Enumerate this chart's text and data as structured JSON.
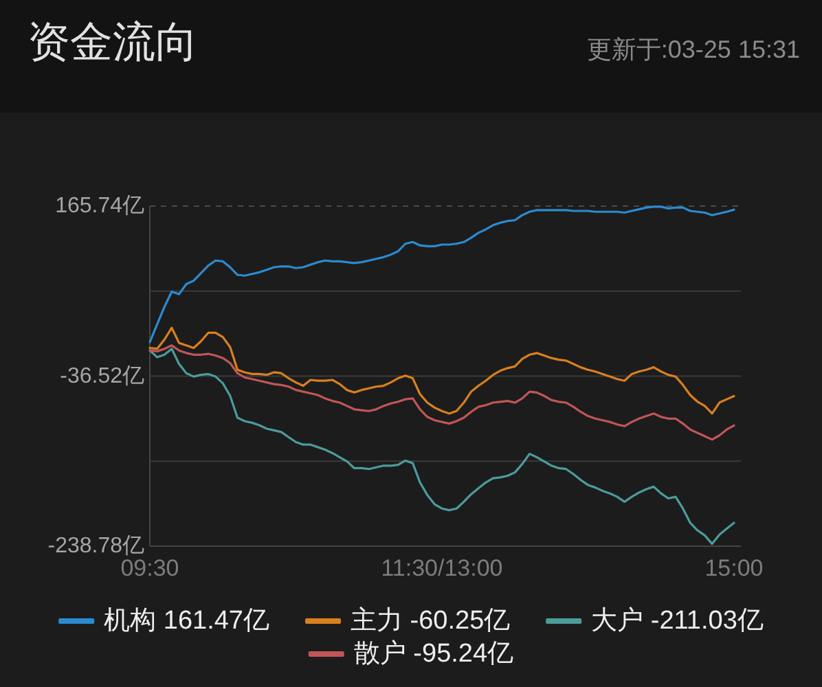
{
  "chart_data": {
    "type": "line",
    "title": "资金流向",
    "annotations": [
      "更新于:03-25 15:31"
    ],
    "categories": [
      "09:30",
      null,
      null,
      null,
      null,
      null,
      null,
      null,
      null,
      null,
      null,
      null,
      null,
      null,
      null,
      null,
      null,
      null,
      null,
      null,
      null,
      null,
      null,
      null,
      null,
      null,
      null,
      null,
      null,
      null,
      null,
      null,
      null,
      null,
      null,
      null,
      null,
      null,
      null,
      null,
      "11:30/13:00",
      null,
      null,
      null,
      null,
      null,
      null,
      null,
      null,
      null,
      null,
      null,
      null,
      null,
      null,
      null,
      null,
      null,
      null,
      null,
      null,
      null,
      null,
      null,
      null,
      null,
      null,
      null,
      null,
      null,
      null,
      null,
      null,
      null,
      null,
      null,
      null,
      null,
      null,
      null,
      "15:00"
    ],
    "ylim": [
      -238.78,
      165.74
    ],
    "yticks": [
      {
        "value": -238.78,
        "label": "-238.78亿"
      },
      {
        "value": -137.65,
        "label": null
      },
      {
        "value": -36.52,
        "label": "-36.52亿"
      },
      {
        "value": 64.61,
        "label": null
      },
      {
        "value": 165.74,
        "label": "165.74亿"
      }
    ],
    "grid": "y",
    "legend": "bottom",
    "series": [
      {
        "name": "机构 161.47亿",
        "color": "#2b8bd0",
        "values": [
          4,
          25,
          46,
          64,
          61,
          73,
          77,
          86,
          95,
          101,
          100,
          93,
          84,
          83,
          85,
          87,
          90,
          93,
          94,
          94,
          92,
          93,
          96,
          99,
          101,
          100,
          100,
          99,
          98,
          99,
          101,
          103,
          105,
          108,
          112,
          121,
          123,
          119,
          118,
          118,
          120,
          120,
          121,
          123,
          128,
          134,
          138,
          143,
          146,
          148,
          149,
          155,
          159,
          161,
          161,
          161,
          161,
          161,
          160,
          160,
          160,
          159,
          159,
          159,
          159,
          158,
          160,
          162,
          164,
          165,
          165,
          163,
          164,
          164,
          160,
          159,
          158,
          155,
          157,
          159,
          161.47
        ]
      },
      {
        "name": "主力 -60.25亿",
        "color": "#d9801f",
        "values": [
          -3,
          -4,
          7,
          21,
          3,
          0,
          -3,
          5,
          15,
          15,
          10,
          -2,
          -29,
          -32,
          -34,
          -34,
          -35,
          -32,
          -33,
          -39,
          -44,
          -48,
          -41,
          -42,
          -42,
          -41,
          -46,
          -53,
          -56,
          -53,
          -51,
          -49,
          -48,
          -44,
          -39,
          -36,
          -39,
          -58,
          -68,
          -74,
          -78,
          -81,
          -78,
          -68,
          -55,
          -48,
          -42,
          -35,
          -30,
          -27,
          -25,
          -16,
          -11,
          -9,
          -12,
          -15,
          -17,
          -18,
          -22,
          -26,
          -29,
          -31,
          -34,
          -37,
          -40,
          -42,
          -34,
          -31,
          -29,
          -26,
          -31,
          -35,
          -37,
          -47,
          -59,
          -67,
          -72,
          -81,
          -68,
          -64,
          -60.25
        ]
      },
      {
        "name": "大户 -211.03亿",
        "color": "#4b9c9a",
        "values": [
          -6,
          -14,
          -11,
          -4,
          -22,
          -33,
          -37,
          -35,
          -34,
          -37,
          -45,
          -60,
          -86,
          -90,
          -92,
          -95,
          -99,
          -101,
          -103,
          -109,
          -115,
          -118,
          -118,
          -121,
          -124,
          -128,
          -133,
          -138,
          -146,
          -146,
          -147,
          -145,
          -143,
          -143,
          -142,
          -137,
          -140,
          -163,
          -178,
          -189,
          -194,
          -196,
          -194,
          -186,
          -177,
          -170,
          -163,
          -158,
          -157,
          -155,
          -151,
          -141,
          -129,
          -133,
          -138,
          -143,
          -146,
          -147,
          -153,
          -160,
          -166,
          -169,
          -173,
          -176,
          -180,
          -186,
          -180,
          -175,
          -171,
          -168,
          -176,
          -182,
          -180,
          -194,
          -211,
          -220,
          -226,
          -236,
          -225,
          -218,
          -211.03
        ]
      },
      {
        "name": "散户 -95.24亿",
        "color": "#c25558",
        "values": [
          -6,
          -7,
          -4,
          0,
          -6,
          -9,
          -11,
          -11,
          -10,
          -12,
          -15,
          -21,
          -33,
          -38,
          -40,
          -42,
          -44,
          -46,
          -47,
          -49,
          -53,
          -55,
          -57,
          -59,
          -63,
          -66,
          -68,
          -72,
          -76,
          -77,
          -78,
          -76,
          -72,
          -69,
          -67,
          -64,
          -63,
          -76,
          -85,
          -89,
          -91,
          -93,
          -90,
          -86,
          -79,
          -73,
          -71,
          -68,
          -67,
          -66,
          -68,
          -63,
          -55,
          -56,
          -60,
          -65,
          -67,
          -68,
          -73,
          -79,
          -84,
          -87,
          -89,
          -91,
          -94,
          -96,
          -91,
          -87,
          -84,
          -81,
          -85,
          -87,
          -87,
          -93,
          -100,
          -104,
          -108,
          -112,
          -107,
          -100,
          -95.24
        ]
      }
    ]
  }
}
